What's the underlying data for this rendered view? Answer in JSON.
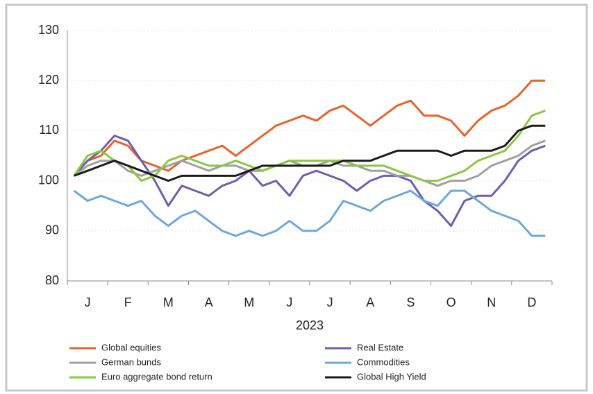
{
  "chart_data": {
    "type": "line",
    "categories": [
      null,
      "J",
      null,
      null,
      "F",
      null,
      null,
      "M",
      null,
      null,
      "A",
      null,
      null,
      "M",
      null,
      null,
      "J",
      null,
      null,
      "J",
      null,
      null,
      "A",
      null,
      null,
      "S",
      null,
      null,
      "O",
      null,
      null,
      "N",
      null,
      null,
      "D",
      null
    ],
    "xlabel": "2023",
    "ylim": [
      80,
      130
    ],
    "yticks": [
      80,
      90,
      100,
      110,
      120,
      130
    ],
    "grid": true,
    "series": [
      {
        "name": "Global equities",
        "color": "#e8622a",
        "values": [
          101,
          104,
          105,
          108,
          107,
          104,
          103,
          102,
          104,
          105,
          106,
          107,
          105,
          107,
          109,
          111,
          112,
          113,
          112,
          114,
          115,
          113,
          111,
          113,
          115,
          116,
          113,
          113,
          112,
          109,
          112,
          114,
          115,
          117,
          120,
          120
        ]
      },
      {
        "name": "Real Estate",
        "color": "#6a5fb0",
        "values": [
          101,
          104,
          106,
          109,
          108,
          104,
          100,
          95,
          99,
          98,
          97,
          99,
          100,
          102,
          99,
          100,
          97,
          101,
          102,
          101,
          100,
          98,
          100,
          101,
          101,
          100,
          96,
          94,
          91,
          96,
          97,
          97,
          100,
          104,
          106,
          107
        ]
      },
      {
        "name": "German bunds",
        "color": "#a0a0a0",
        "values": [
          101,
          103,
          104,
          104,
          102,
          101,
          102,
          103,
          104,
          103,
          102,
          103,
          103,
          102,
          102,
          103,
          104,
          103,
          103,
          104,
          103,
          103,
          102,
          102,
          101,
          101,
          100,
          99,
          100,
          100,
          101,
          103,
          104,
          105,
          107,
          108
        ]
      },
      {
        "name": "Commodities",
        "color": "#6ca8dc",
        "values": [
          98,
          96,
          97,
          96,
          95,
          96,
          93,
          91,
          93,
          94,
          92,
          90,
          89,
          90,
          89,
          90,
          92,
          90,
          90,
          92,
          96,
          95,
          94,
          96,
          97,
          98,
          96,
          95,
          98,
          98,
          96,
          94,
          93,
          92,
          89,
          89
        ]
      },
      {
        "name": "Euro aggregate bond return",
        "color": "#8cc63f",
        "values": [
          101,
          105,
          106,
          104,
          103,
          100,
          101,
          104,
          105,
          104,
          103,
          103,
          104,
          103,
          102,
          103,
          104,
          104,
          104,
          104,
          104,
          103,
          103,
          103,
          102,
          101,
          100,
          100,
          101,
          102,
          104,
          105,
          106,
          109,
          113,
          114
        ]
      },
      {
        "name": "Global High Yield",
        "color": "#1a1a1a",
        "values": [
          101,
          102,
          103,
          104,
          103,
          102,
          101,
          100,
          101,
          101,
          101,
          101,
          101,
          102,
          103,
          103,
          103,
          103,
          103,
          103,
          104,
          104,
          104,
          105,
          106,
          106,
          106,
          106,
          105,
          106,
          106,
          106,
          107,
          110,
          111,
          111
        ]
      }
    ]
  }
}
